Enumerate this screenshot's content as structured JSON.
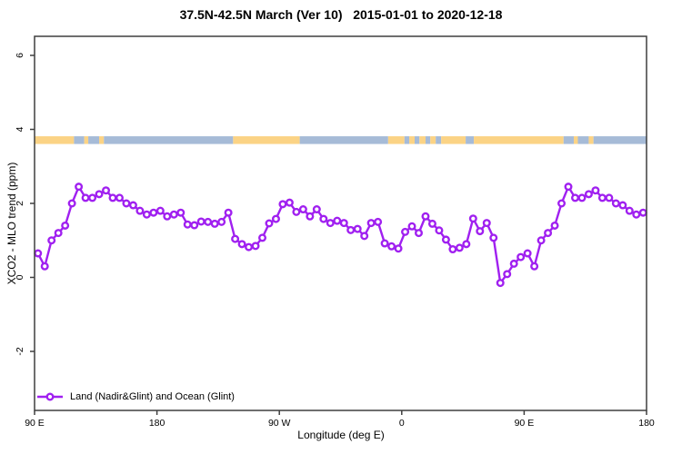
{
  "title": "37.5N-42.5N March (Ver 10)   2015-01-01 to 2020-12-18",
  "axes": {
    "x": {
      "label": "Longitude (deg E)",
      "range": [
        90,
        540
      ],
      "ticks": [
        {
          "lon": 90,
          "label": "90 E"
        },
        {
          "lon": 180,
          "label": "180"
        },
        {
          "lon": 270,
          "label": "90 W"
        },
        {
          "lon": 360,
          "label": "0"
        },
        {
          "lon": 450,
          "label": "90 E"
        },
        {
          "lon": 540,
          "label": "180"
        }
      ]
    },
    "y": {
      "label": "XCO2 - MLO trend (ppm)",
      "ticks": [
        {
          "v": -2,
          "label": "-2"
        },
        {
          "v": 0,
          "label": "0"
        },
        {
          "v": 2,
          "label": "2"
        },
        {
          "v": 4,
          "label": "4"
        },
        {
          "v": 6,
          "label": "6"
        }
      ]
    }
  },
  "legend": {
    "label": "Land (Nadir&Glint) and Ocean (Glint)"
  },
  "colors": {
    "series": "#a020f0",
    "marker_fill": "#ffffff",
    "land": "#fbd385",
    "ocean": "#a6bbd7",
    "axis": "#3f3f3f",
    "text": "#000000"
  },
  "surface_band": {
    "description": "land/ocean surface-type strip along longitude",
    "y_value": 3.71,
    "segments": [
      {
        "from": 90,
        "to": 119,
        "type": "land"
      },
      {
        "from": 119,
        "to": 126.5,
        "type": "ocean"
      },
      {
        "from": 126.5,
        "to": 129.5,
        "type": "land"
      },
      {
        "from": 129.5,
        "to": 137.5,
        "type": "ocean"
      },
      {
        "from": 137.5,
        "to": 141,
        "type": "land"
      },
      {
        "from": 141,
        "to": 236,
        "type": "ocean"
      },
      {
        "from": 236,
        "to": 285,
        "type": "land"
      },
      {
        "from": 285,
        "to": 350,
        "type": "ocean"
      },
      {
        "from": 350,
        "to": 362,
        "type": "land"
      },
      {
        "from": 362,
        "to": 365.5,
        "type": "ocean"
      },
      {
        "from": 365.5,
        "to": 369.5,
        "type": "land"
      },
      {
        "from": 369.5,
        "to": 373,
        "type": "ocean"
      },
      {
        "from": 373,
        "to": 377.5,
        "type": "land"
      },
      {
        "from": 377.5,
        "to": 381,
        "type": "ocean"
      },
      {
        "from": 381,
        "to": 385,
        "type": "land"
      },
      {
        "from": 385,
        "to": 389,
        "type": "ocean"
      },
      {
        "from": 389,
        "to": 407,
        "type": "land"
      },
      {
        "from": 407,
        "to": 413,
        "type": "ocean"
      },
      {
        "from": 413,
        "to": 479,
        "type": "land"
      },
      {
        "from": 479,
        "to": 486.5,
        "type": "ocean"
      },
      {
        "from": 486.5,
        "to": 489.5,
        "type": "land"
      },
      {
        "from": 489.5,
        "to": 497.5,
        "type": "ocean"
      },
      {
        "from": 497.5,
        "to": 501,
        "type": "land"
      },
      {
        "from": 501,
        "to": 540,
        "type": "ocean"
      }
    ]
  },
  "chart_data": {
    "type": "line",
    "title": "37.5N-42.5N March (Ver 10)   2015-01-01 to 2020-12-18",
    "xlabel": "Longitude (deg E)",
    "ylabel": "XCO2 - MLO trend (ppm)",
    "series_name": "Land (Nadir&Glint) and Ocean (Glint)",
    "marker": "open-circle",
    "x_start": 92.5,
    "x_step": 5,
    "x_note": "longitude axis runs 90E -> 180 -> 90W -> 0 -> 90E -> 180 (450 deg, values repeat after 360)",
    "xlim": [
      90,
      540
    ],
    "ylim": [
      -3.6,
      6.5
    ],
    "grid": false,
    "legend_position": "bottom-left",
    "values": [
      0.65,
      0.3,
      1.0,
      1.2,
      1.4,
      2.0,
      2.45,
      2.15,
      2.15,
      2.25,
      2.35,
      2.15,
      2.15,
      2.0,
      1.95,
      1.8,
      1.7,
      1.75,
      1.8,
      1.65,
      1.7,
      1.75,
      1.43,
      1.41,
      1.51,
      1.5,
      1.45,
      1.5,
      1.75,
      1.04,
      0.9,
      0.82,
      0.85,
      1.07,
      1.46,
      1.58,
      1.98,
      2.02,
      1.77,
      1.84,
      1.65,
      1.84,
      1.58,
      1.47,
      1.53,
      1.47,
      1.28,
      1.31,
      1.12,
      1.47,
      1.5,
      0.92,
      0.84,
      0.78,
      1.23,
      1.38,
      1.2,
      1.65,
      1.45,
      1.27,
      1.02,
      0.76,
      0.8,
      0.9,
      1.59,
      1.25,
      1.47,
      1.07,
      -0.15,
      0.09,
      0.37,
      0.55,
      0.65,
      0.3,
      1.0,
      1.2,
      1.4,
      2.0,
      2.45,
      2.15,
      2.15,
      2.25,
      2.35,
      2.15,
      2.15,
      2.0,
      1.95,
      1.8,
      1.7,
      1.75
    ]
  }
}
